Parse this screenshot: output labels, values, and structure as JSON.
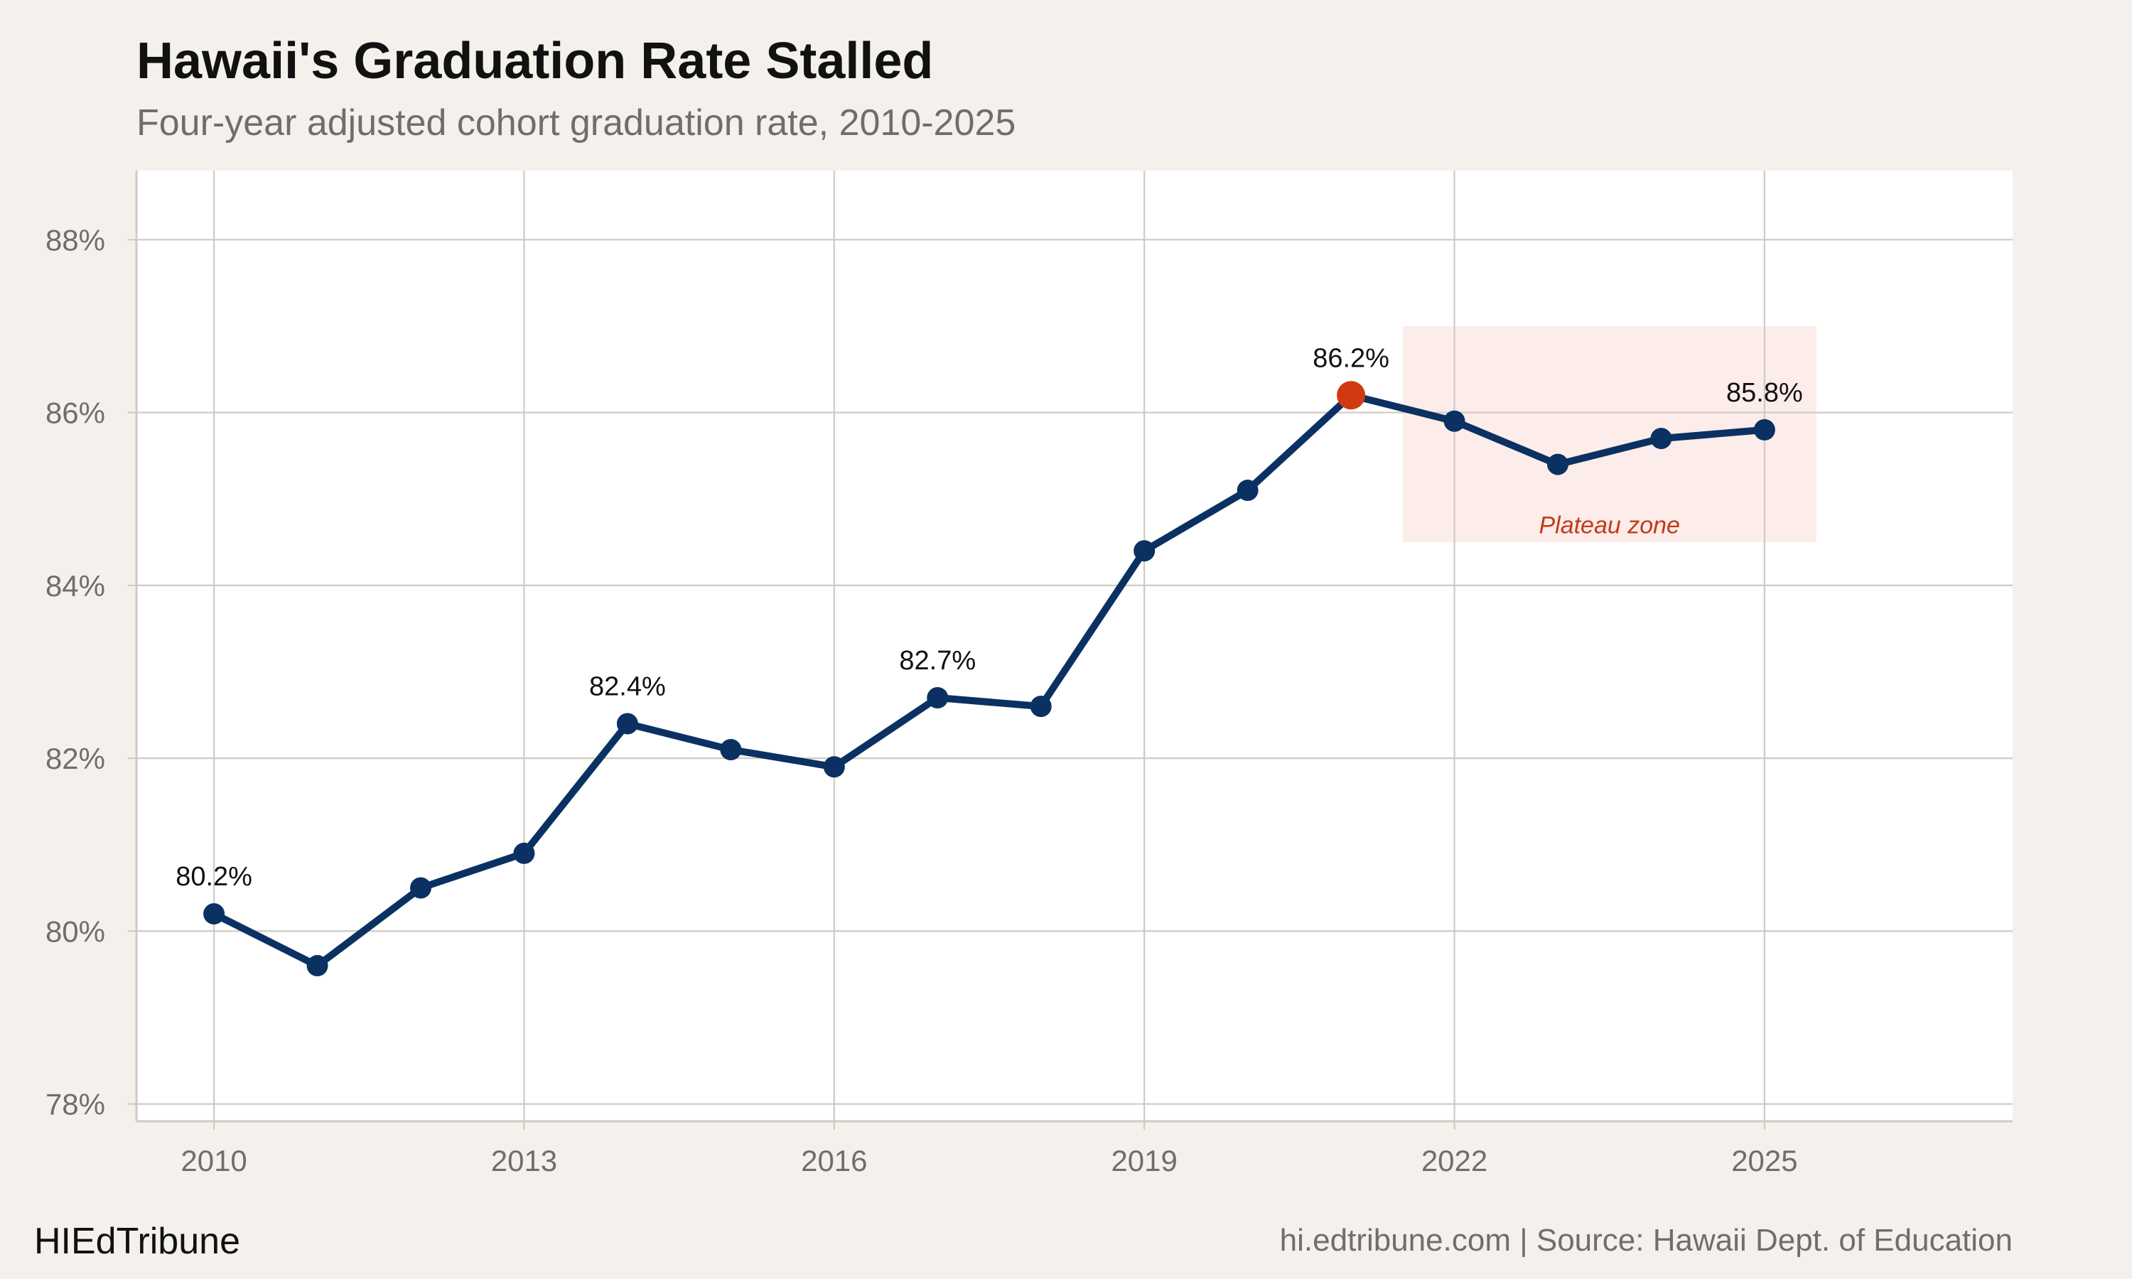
{
  "header": {
    "title": "Hawaii's Graduation Rate Stalled",
    "subtitle": "Four-year adjusted cohort graduation rate, 2010-2025"
  },
  "footer": {
    "brand": "HIEdTribune",
    "source": "hi.edtribune.com | Source: Hawaii Dept. of Education"
  },
  "colors": {
    "background": "#f4f1ec",
    "panel": "#ffffff",
    "grid": "#cfcbc4",
    "line": "#0a3161",
    "highlight": "#d03a12",
    "plateau_fill": "#fcecea",
    "plateau_text": "#c43a16"
  },
  "chart_data": {
    "type": "line",
    "title": "Hawaii's Graduation Rate Stalled",
    "subtitle": "Four-year adjusted cohort graduation rate, 2010-2025",
    "xlabel": "",
    "ylabel": "",
    "x": [
      2010,
      2011,
      2012,
      2013,
      2014,
      2015,
      2016,
      2017,
      2018,
      2019,
      2020,
      2021,
      2022,
      2023,
      2024,
      2025
    ],
    "series": [
      {
        "values": [
          80.2,
          79.6,
          80.5,
          80.9,
          82.4,
          82.1,
          81.9,
          82.7,
          82.6,
          84.4,
          85.1,
          86.2,
          85.9,
          85.4,
          85.7,
          85.8
        ]
      }
    ],
    "xlim": [
      2009.25,
      2027.4
    ],
    "ylim": [
      77.8,
      88.8
    ],
    "x_ticks": [
      2010,
      2013,
      2016,
      2019,
      2022,
      2025
    ],
    "x_tick_labels": [
      "2010",
      "2013",
      "2016",
      "2019",
      "2022",
      "2025"
    ],
    "y_ticks": [
      78,
      80,
      82,
      84,
      86,
      88
    ],
    "y_tick_labels": [
      "78%",
      "80%",
      "82%",
      "84%",
      "86%",
      "88%"
    ],
    "grid": true,
    "highlight": {
      "x": 2021,
      "y": 86.2
    },
    "data_labels": [
      {
        "x": 2010,
        "y": 80.2,
        "text": "80.2%"
      },
      {
        "x": 2014,
        "y": 82.4,
        "text": "82.4%"
      },
      {
        "x": 2017,
        "y": 82.7,
        "text": "82.7%"
      },
      {
        "x": 2021,
        "y": 86.2,
        "text": "86.2%"
      },
      {
        "x": 2025,
        "y": 85.8,
        "text": "85.8%"
      }
    ],
    "shaded_region": {
      "x_range": [
        2021.5,
        2025.5
      ],
      "y_range": [
        84.5,
        87.0
      ],
      "label": "Plateau zone",
      "label_x": 2023.5,
      "label_y": 84.7
    }
  }
}
